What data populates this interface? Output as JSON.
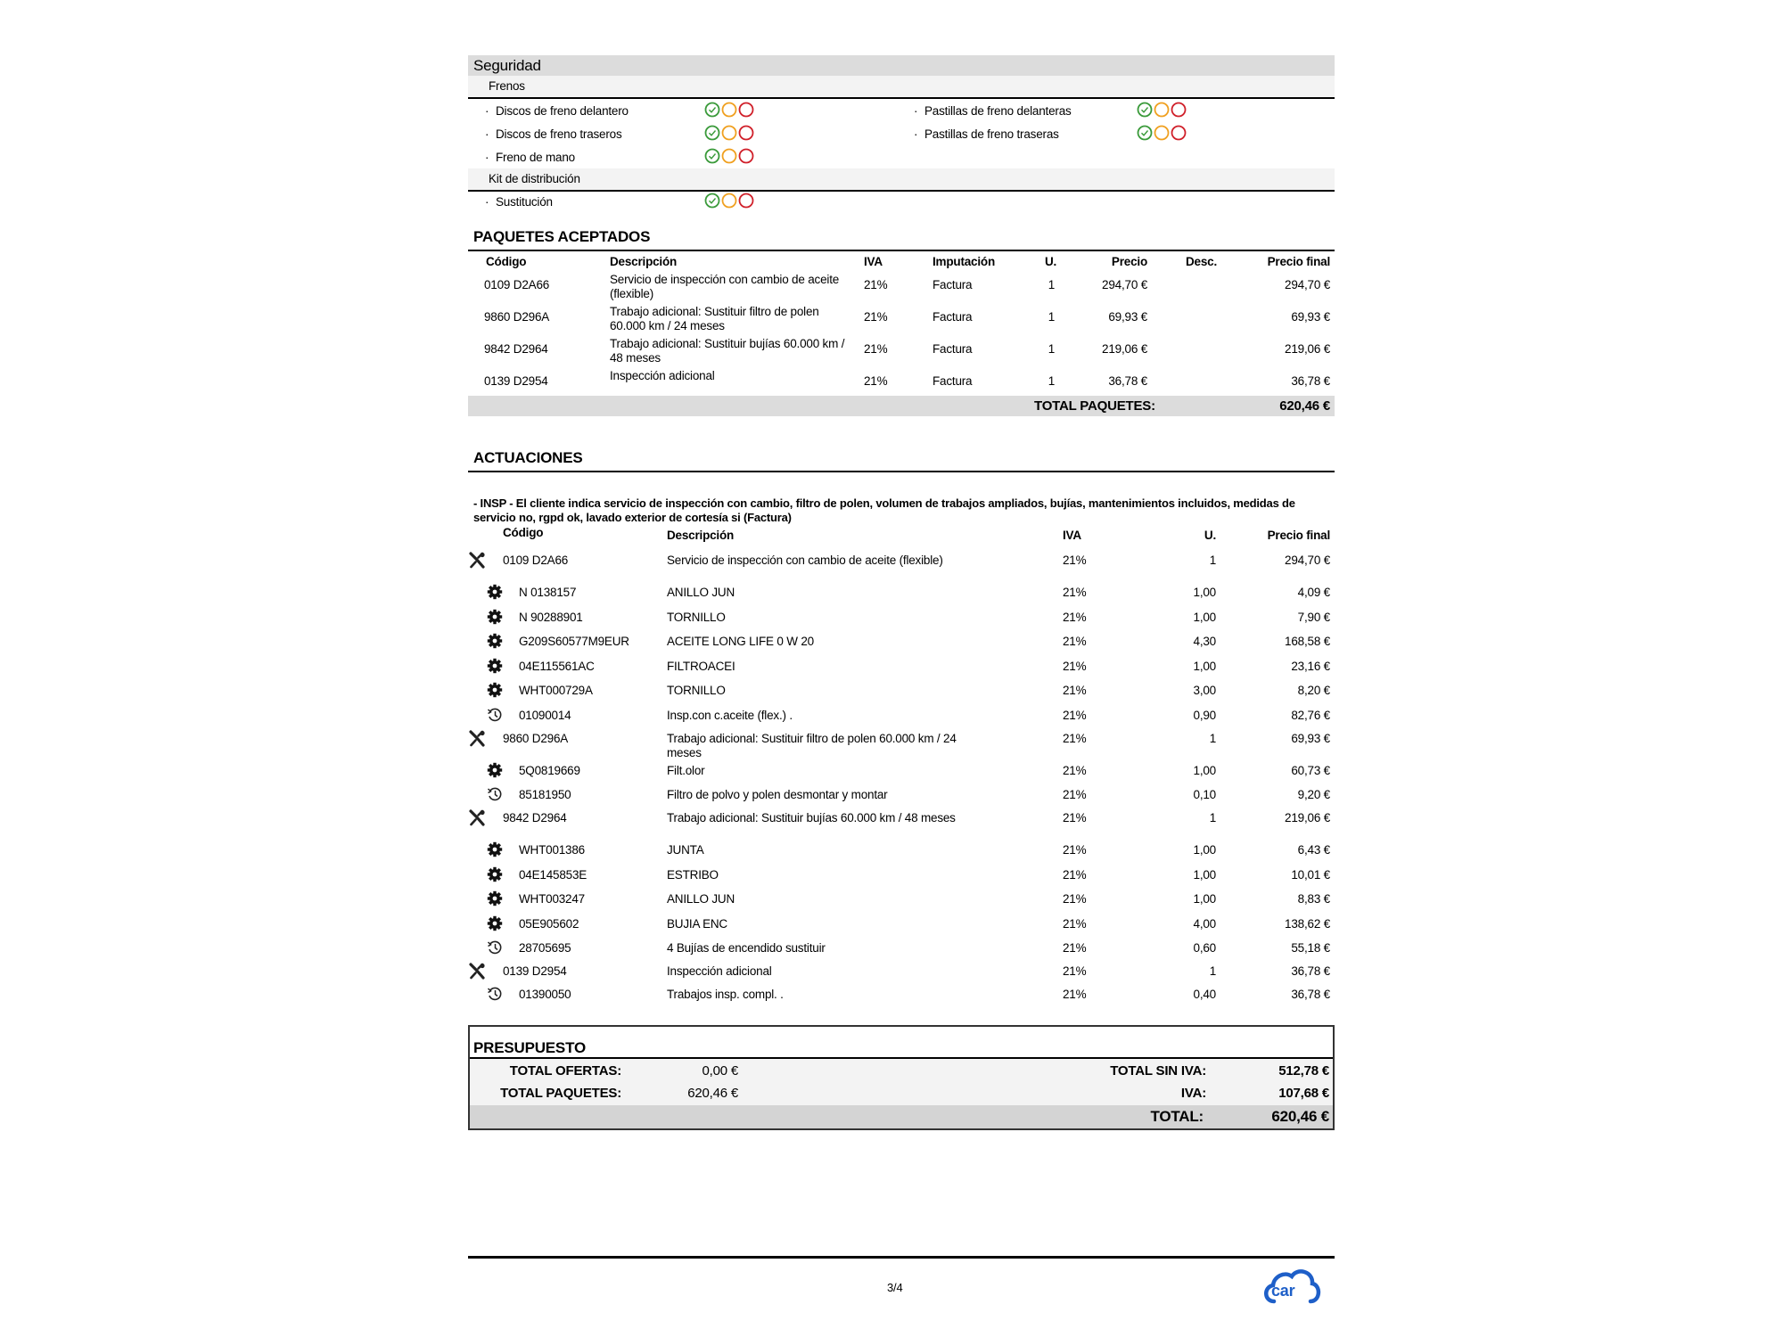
{
  "security": {
    "title": "Seguridad",
    "groups": [
      {
        "name": "Frenos",
        "items": [
          {
            "label": "Discos de freno delantero"
          },
          {
            "label": "Pastillas de freno delanteras"
          },
          {
            "label": "Discos de freno traseros"
          },
          {
            "label": "Pastillas de freno traseras"
          },
          {
            "label": "Freno de mano"
          }
        ]
      },
      {
        "name": "Kit de distribución",
        "items": [
          {
            "label": "Sustitución"
          }
        ]
      }
    ],
    "bullet": "·",
    "light_colors": {
      "ok": "#3a9a3a",
      "warn": "#f0a020",
      "bad": "#d0202a"
    },
    "selected_status": "ok"
  },
  "packages": {
    "title": "PAQUETES ACEPTADOS",
    "headers": {
      "code": "Código",
      "desc": "Descripción",
      "iva": "IVA",
      "imp": "Imputación",
      "u": "U.",
      "price": "Precio",
      "disc": "Desc.",
      "final": "Precio final"
    },
    "rows": [
      {
        "code": "0109 D2A66",
        "desc": "Servicio de inspección con cambio de aceite (flexible)",
        "iva": "21%",
        "imp": "Factura",
        "u": "1",
        "price": "294,70 €",
        "disc": "",
        "final": "294,70 €"
      },
      {
        "code": "9860 D296A",
        "desc": "Trabajo adicional: Sustituir filtro de polen 60.000 km / 24 meses",
        "iva": "21%",
        "imp": "Factura",
        "u": "1",
        "price": "69,93 €",
        "disc": "",
        "final": "69,93 €"
      },
      {
        "code": "9842 D2964",
        "desc": "Trabajo adicional: Sustituir bujías 60.000 km / 48 meses",
        "iva": "21%",
        "imp": "Factura",
        "u": "1",
        "price": "219,06 €",
        "disc": "",
        "final": "219,06 €"
      },
      {
        "code": "0139 D2954",
        "desc": "Inspección adicional",
        "iva": "21%",
        "imp": "Factura",
        "u": "1",
        "price": "36,78 €",
        "disc": "",
        "final": "36,78 €"
      }
    ],
    "total_label": "TOTAL PAQUETES:",
    "total_value": "620,46 €"
  },
  "actions": {
    "title": "ACTUACIONES",
    "note": "- INSP - El cliente indica servicio de inspección con cambio, filtro de polen, volumen de trabajos ampliados, bujías, mantenimientos incluidos, medidas de servicio no, rgpd ok, lavado exterior de cortesía si  (Factura)",
    "headers": {
      "code": "Código",
      "desc": "Descripción",
      "iva": "IVA",
      "u": "U.",
      "final": "Precio final"
    },
    "rows": [
      {
        "kind": "package",
        "icon": "tools-icon",
        "code": "0109 D2A66",
        "desc": "Servicio de inspección con cambio de aceite (flexible)",
        "iva": "21%",
        "u": "1",
        "final": "294,70 €"
      },
      {
        "kind": "part",
        "icon": "gear-icon",
        "code": "N  0138157",
        "desc": "ANILLO JUN",
        "iva": "21%",
        "u": "1,00",
        "final": "4,09 €"
      },
      {
        "kind": "part",
        "icon": "gear-icon",
        "code": "N  90288901",
        "desc": "TORNILLO",
        "iva": "21%",
        "u": "1,00",
        "final": "7,90 €"
      },
      {
        "kind": "part",
        "icon": "gear-icon",
        "code": "G209S60577M9EUR",
        "desc": "ACEITE LONG LIFE 0 W 20",
        "iva": "21%",
        "u": "4,30",
        "final": "168,58 €"
      },
      {
        "kind": "part",
        "icon": "gear-icon",
        "code": "04E115561AC",
        "desc": "FILTROACEI",
        "iva": "21%",
        "u": "1,00",
        "final": "23,16 €"
      },
      {
        "kind": "part",
        "icon": "gear-icon",
        "code": "WHT000729A",
        "desc": "TORNILLO",
        "iva": "21%",
        "u": "3,00",
        "final": "8,20 €"
      },
      {
        "kind": "labor",
        "icon": "history-icon",
        "code": "01090014",
        "desc": "Insp.con c.aceite (flex.) .",
        "iva": "21%",
        "u": "0,90",
        "final": "82,76 €"
      },
      {
        "kind": "package",
        "icon": "tools-icon",
        "code": "9860 D296A",
        "desc": "Trabajo adicional: Sustituir filtro de polen 60.000 km / 24 meses",
        "iva": "21%",
        "u": "1",
        "final": "69,93 €"
      },
      {
        "kind": "part",
        "icon": "gear-icon",
        "code": "5Q0819669",
        "desc": "Filt.olor",
        "iva": "21%",
        "u": "1,00",
        "final": "60,73 €"
      },
      {
        "kind": "labor",
        "icon": "history-icon",
        "code": "85181950",
        "desc": "Filtro de polvo y polen desmontar y montar",
        "iva": "21%",
        "u": "0,10",
        "final": "9,20 €"
      },
      {
        "kind": "package",
        "icon": "tools-icon",
        "code": "9842 D2964",
        "desc": "Trabajo adicional: Sustituir bujías 60.000 km / 48 meses",
        "iva": "21%",
        "u": "1",
        "final": "219,06 €"
      },
      {
        "kind": "part",
        "icon": "gear-icon",
        "code": "WHT001386",
        "desc": "JUNTA",
        "iva": "21%",
        "u": "1,00",
        "final": "6,43 €"
      },
      {
        "kind": "part",
        "icon": "gear-icon",
        "code": "04E145853E",
        "desc": "ESTRIBO",
        "iva": "21%",
        "u": "1,00",
        "final": "10,01 €"
      },
      {
        "kind": "part",
        "icon": "gear-icon",
        "code": "WHT003247",
        "desc": "ANILLO JUN",
        "iva": "21%",
        "u": "1,00",
        "final": "8,83 €"
      },
      {
        "kind": "part",
        "icon": "gear-icon",
        "code": "05E905602",
        "desc": "BUJIA ENC",
        "iva": "21%",
        "u": "4,00",
        "final": "138,62 €"
      },
      {
        "kind": "labor",
        "icon": "history-icon",
        "code": "28705695",
        "desc": "4 Bujías de encendido sustituir",
        "iva": "21%",
        "u": "0,60",
        "final": "55,18 €"
      },
      {
        "kind": "package",
        "icon": "tools-icon",
        "code": "0139 D2954",
        "desc": "Inspección adicional",
        "iva": "21%",
        "u": "1",
        "final": "36,78 €"
      },
      {
        "kind": "labor",
        "icon": "history-icon",
        "code": "01390050",
        "desc": "Trabajos insp. compl. .",
        "iva": "21%",
        "u": "0,40",
        "final": "36,78 €"
      }
    ]
  },
  "budget": {
    "title": "PRESUPUESTO",
    "offers_label": "TOTAL OFERTAS:",
    "offers_value": "0,00 €",
    "packages_label": "TOTAL PAQUETES:",
    "packages_value": "620,46 €",
    "net_label": "TOTAL SIN IVA:",
    "net_value": "512,78 €",
    "vat_label": "IVA:",
    "vat_value": "107,68 €",
    "total_label": "TOTAL:",
    "total_value": "620,46 €"
  },
  "footer": {
    "page": "3/4",
    "logo_text": "car",
    "logo_color": "#1e5fc8"
  }
}
